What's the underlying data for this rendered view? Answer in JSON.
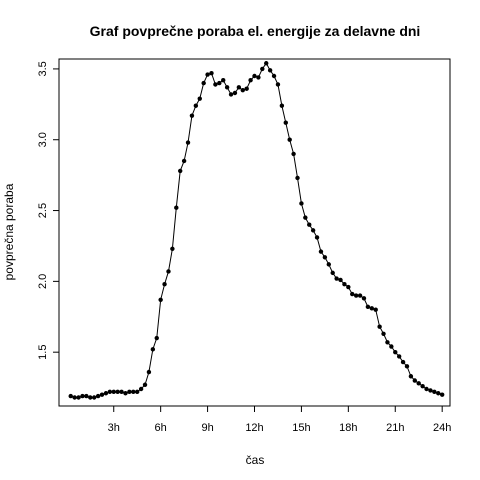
{
  "chart_data": {
    "type": "line",
    "title": "Graf povprečne poraba el. energije za delavne dni",
    "xlabel": "čas",
    "ylabel": "povprečna poraba",
    "xlim": [
      -0.5,
      24.5
    ],
    "ylim": [
      1.12,
      3.57
    ],
    "grid": false,
    "legend": "none",
    "x_ticks": [
      3,
      6,
      9,
      12,
      15,
      18,
      21,
      24
    ],
    "x_tick_labels": [
      "3h",
      "6h",
      "9h",
      "12h",
      "15h",
      "18h",
      "21h",
      "24h"
    ],
    "y_ticks": [
      1.5,
      2.0,
      2.5,
      3.0,
      3.5
    ],
    "y_tick_labels": [
      "1.5",
      "2.0",
      "2.5",
      "3.0",
      "3.5"
    ],
    "series": [
      {
        "color": "#000000",
        "marker": "filled-circle",
        "x": [
          0.25,
          0.5,
          0.75,
          1.0,
          1.25,
          1.5,
          1.75,
          2.0,
          2.25,
          2.5,
          2.75,
          3.0,
          3.25,
          3.5,
          3.75,
          4.0,
          4.25,
          4.5,
          4.75,
          5.0,
          5.25,
          5.5,
          5.75,
          6.0,
          6.25,
          6.5,
          6.75,
          7.0,
          7.25,
          7.5,
          7.75,
          8.0,
          8.25,
          8.5,
          8.75,
          9.0,
          9.25,
          9.5,
          9.75,
          10.0,
          10.25,
          10.5,
          10.75,
          11.0,
          11.25,
          11.5,
          11.75,
          12.0,
          12.25,
          12.5,
          12.75,
          13.0,
          13.25,
          13.5,
          13.75,
          14.0,
          14.25,
          14.5,
          14.75,
          15.0,
          15.25,
          15.5,
          15.75,
          16.0,
          16.25,
          16.5,
          16.75,
          17.0,
          17.25,
          17.5,
          17.75,
          18.0,
          18.25,
          18.5,
          18.75,
          19.0,
          19.25,
          19.5,
          19.75,
          20.0,
          20.25,
          20.5,
          20.75,
          21.0,
          21.25,
          21.5,
          21.75,
          22.0,
          22.25,
          22.5,
          22.75,
          23.0,
          23.25,
          23.5,
          23.75,
          24.0
        ],
        "y": [
          1.19,
          1.18,
          1.18,
          1.19,
          1.19,
          1.18,
          1.18,
          1.19,
          1.2,
          1.21,
          1.22,
          1.22,
          1.22,
          1.22,
          1.21,
          1.22,
          1.22,
          1.22,
          1.24,
          1.27,
          1.36,
          1.52,
          1.6,
          1.87,
          1.98,
          2.07,
          2.23,
          2.52,
          2.78,
          2.85,
          2.98,
          3.17,
          3.24,
          3.29,
          3.4,
          3.46,
          3.47,
          3.39,
          3.4,
          3.42,
          3.37,
          3.32,
          3.33,
          3.37,
          3.35,
          3.36,
          3.42,
          3.45,
          3.44,
          3.5,
          3.54,
          3.49,
          3.45,
          3.39,
          3.24,
          3.12,
          3.0,
          2.9,
          2.73,
          2.55,
          2.45,
          2.4,
          2.36,
          2.31,
          2.21,
          2.17,
          2.12,
          2.06,
          2.02,
          2.01,
          1.98,
          1.96,
          1.91,
          1.9,
          1.9,
          1.88,
          1.82,
          1.81,
          1.8,
          1.68,
          1.63,
          1.57,
          1.54,
          1.5,
          1.47,
          1.43,
          1.4,
          1.33,
          1.3,
          1.28,
          1.26,
          1.24,
          1.23,
          1.22,
          1.21,
          1.2
        ]
      }
    ]
  }
}
